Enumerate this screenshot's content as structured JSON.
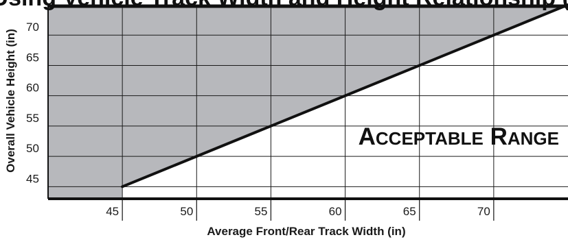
{
  "chart_data": {
    "type": "area",
    "title": "Rollover Range Using Vehicle Track Width and Height Relationship (in)",
    "xlabel": "Average Front/Rear Track Width (in)",
    "ylabel": "Overall Vehicle Height (in)",
    "xlim": [
      40,
      75
    ],
    "ylim": [
      43,
      75
    ],
    "xticks": [
      45,
      50,
      55,
      60,
      65,
      70
    ],
    "yticks": [
      45,
      50,
      55,
      60,
      65,
      70
    ],
    "grid": true,
    "series": [
      {
        "x": [
          45,
          75
        ],
        "y": [
          45,
          75
        ]
      }
    ],
    "region_labels": [
      {
        "text": "Acceptable Range",
        "region": "below-line"
      }
    ],
    "colors": {
      "shaded_region": "#b7b8bc",
      "acceptable_region": "#ffffff",
      "line": "#111111",
      "grid": "#1a1a1a"
    }
  }
}
